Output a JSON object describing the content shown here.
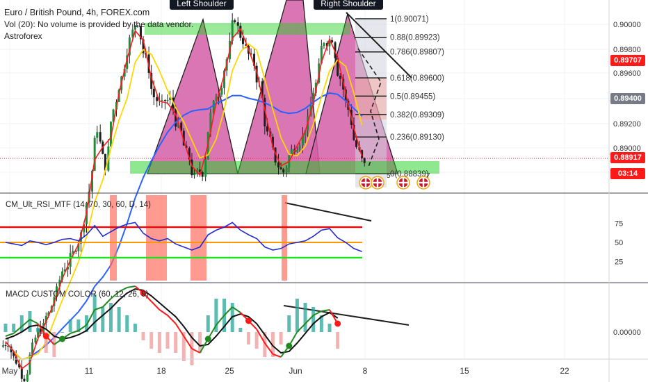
{
  "header": {
    "symbol_line": "Euro / British Pound, 4h, FOREX.com",
    "volume_line": "Vol (20): No volume is provided by the data vendor.",
    "author": "Astroforex"
  },
  "annotations": {
    "left_shoulder": "Left Shoulder",
    "right_shoulder": "Right Shoulder"
  },
  "fib_levels": [
    {
      "ratio": "1",
      "price": 0.90071,
      "label": "1(0.90071)"
    },
    {
      "ratio": "0.88",
      "price": 0.89923,
      "label": "0.88(0.89923)"
    },
    {
      "ratio": "0.786",
      "price": 0.89807,
      "label": "0.786(0.89807)"
    },
    {
      "ratio": "0.618",
      "price": 0.896,
      "label": "0.618(0.89600)"
    },
    {
      "ratio": "0.5",
      "price": 0.89455,
      "label": "0.5(0.89455)"
    },
    {
      "ratio": "0.382",
      "price": 0.89309,
      "label": "0.382(0.89309)"
    },
    {
      "ratio": "0.236",
      "price": 0.8913,
      "label": "0.236(0.89130)"
    },
    {
      "ratio": "0",
      "price": 0.88839,
      "label": "0(0.88839)"
    }
  ],
  "event_flags": {
    "count_a": "5",
    "count_b": "7"
  },
  "price_axis": {
    "ticks": [
      "0.90000",
      "0.89800",
      "0.89600",
      "0.89400",
      "0.89200",
      "0.89000",
      "0.8"
    ],
    "last_price": "0.88917",
    "countdown": "03:14",
    "marker_red": "0.89707",
    "marker_grey": "0.89400",
    "colors": {
      "last": "#ff1a1a",
      "marker_grey": "#787b86"
    }
  },
  "rsi_pane": {
    "title": "CM_Ult_RSI_MTF (14, 70, 30, 60, D, 14)",
    "ticks": [
      "75",
      "50",
      "25"
    ]
  },
  "macd_pane": {
    "title": "MACD CUSTOM COLOR (60, 12, 26, 9)",
    "ticks": [
      "0.00000"
    ]
  },
  "time_axis": {
    "labels": [
      "May",
      "11",
      "18",
      "25",
      "Jun",
      "8",
      "15",
      "22"
    ]
  },
  "chart_data": [
    {
      "type": "line",
      "pane": "price",
      "title": "",
      "xlabel": "",
      "ylabel": "",
      "x_unit": "trading day index (0 = May 4)",
      "ylim": [
        0.887,
        0.9022
      ],
      "series": [
        {
          "values_close": [
            0.875,
            0.8735,
            0.8722,
            0.8745,
            0.876,
            0.8772,
            0.879,
            0.881,
            0.882,
            0.8835,
            0.887,
            0.892,
            0.889,
            0.8935,
            0.896,
            0.899,
            0.9005,
            0.8975,
            0.8945,
            0.8938,
            0.8942,
            0.892,
            0.89,
            0.888,
            0.8885,
            0.893,
            0.895,
            0.8975,
            0.9008,
            0.899,
            0.8975,
            0.8955,
            0.8915,
            0.8895,
            0.8885,
            0.8902,
            0.891,
            0.8925,
            0.8955,
            0.899,
            0.8992,
            0.896,
            0.8935,
            0.8905,
            0.889
          ]
        }
      ],
      "moving_averages": [
        "red-fast",
        "yellow-medium",
        "blue-slow"
      ]
    },
    {
      "type": "line",
      "pane": "rsi",
      "ylim": [
        0,
        100
      ],
      "levels": {
        "upper": 70,
        "middle": 50,
        "lower": 30
      },
      "series": [
        {
          "values": [
            50,
            48,
            46,
            52,
            50,
            47,
            50,
            54,
            55,
            52,
            60,
            72,
            58,
            64,
            70,
            74,
            76,
            62,
            55,
            52,
            55,
            48,
            44,
            40,
            44,
            60,
            66,
            70,
            76,
            66,
            60,
            55,
            44,
            40,
            42,
            48,
            50,
            52,
            58,
            66,
            68,
            56,
            50,
            42,
            38
          ]
        }
      ]
    },
    {
      "type": "line",
      "pane": "macd",
      "series": [
        {
          "values_macd": [
            -0.3,
            -0.1,
            0.4,
            0.9,
            0.6,
            -0.3,
            -0.9,
            -0.5,
            -0.1,
            0.1,
            0.5,
            1.6,
            1.8,
            2.4,
            2.9,
            3.2,
            3.3,
            2.8,
            2.2,
            1.6,
            1.2,
            0.6,
            -0.3,
            -1.2,
            -1.5,
            -0.5,
            0.5,
            1.2,
            1.8,
            1.4,
            0.8,
            0.2,
            -0.8,
            -1.6,
            -1.8,
            -1.0,
            0.0,
            0.6,
            1.2,
            1.5,
            1.6,
            0.6
          ]
        },
        {
          "values_signal": [
            -0.5,
            -0.3,
            0.0,
            0.4,
            0.5,
            0.2,
            -0.3,
            -0.5,
            -0.4,
            -0.2,
            0.1,
            0.7,
            1.2,
            1.7,
            2.3,
            2.8,
            3.1,
            3.0,
            2.6,
            2.1,
            1.6,
            1.1,
            0.4,
            -0.4,
            -1.0,
            -0.9,
            -0.3,
            0.4,
            1.1,
            1.3,
            1.1,
            0.6,
            -0.2,
            -1.0,
            -1.5,
            -1.4,
            -0.8,
            -0.1,
            0.6,
            1.1,
            1.4,
            1.0
          ]
        }
      ]
    }
  ]
}
